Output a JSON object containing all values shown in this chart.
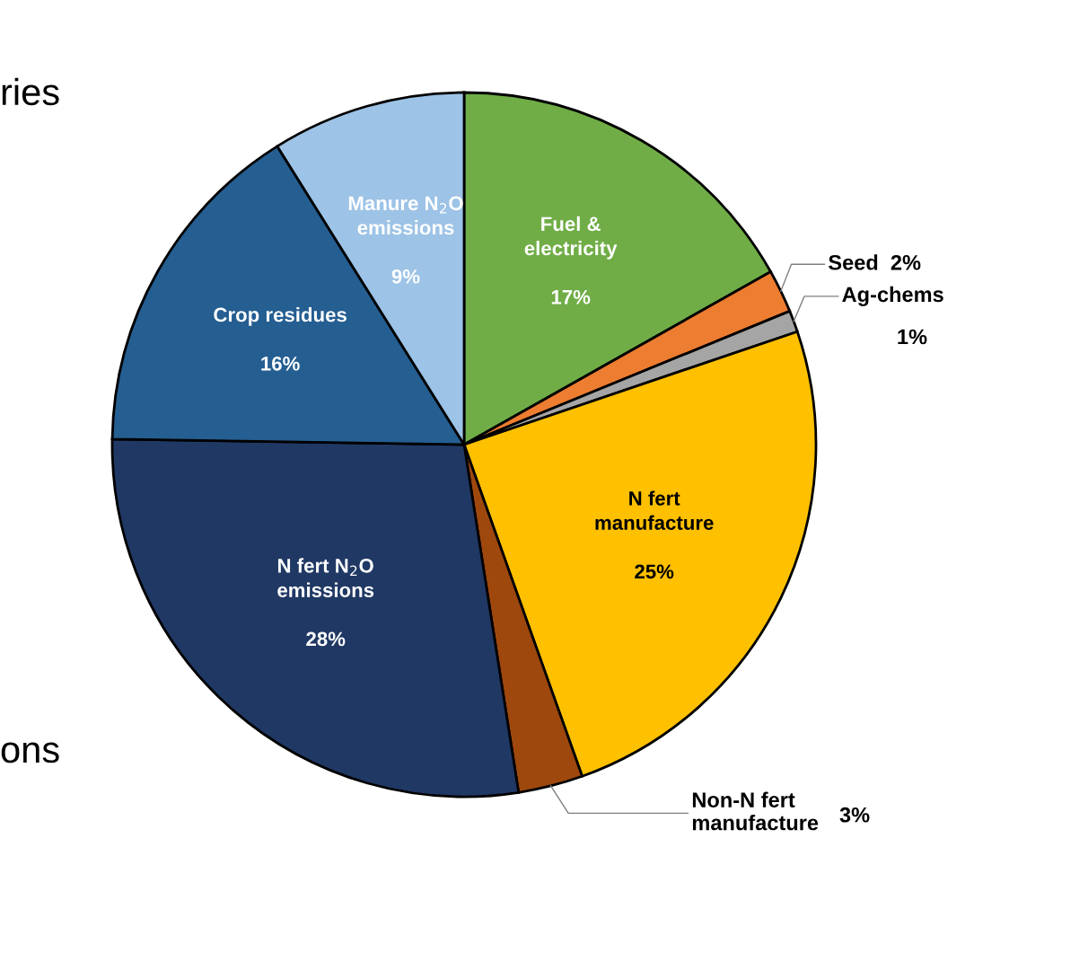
{
  "chart_data": {
    "type": "pie",
    "categories": [
      "Fuel &\nelectricity",
      "Seed",
      "Ag-chems",
      "N fert\nmanufacture",
      "Non-N fert\nmanufacture",
      "N fert N$_{2}$O\nemissions",
      "Crop residues",
      "Manure N$_{2}$O\nemissions"
    ],
    "values": [
      17,
      2,
      1,
      25,
      3,
      28,
      16,
      9
    ],
    "value_labels": [
      "17%",
      "2%",
      "1%",
      "25%",
      "3%",
      "28%",
      "16%",
      "9%"
    ],
    "colors": [
      "#70ad47",
      "#ed7d31",
      "#a5a5a5",
      "#ffc000",
      "#9e480e",
      "#203864",
      "#255e91",
      "#9dc3e6"
    ],
    "annotations": [
      "ries",
      "ons"
    ]
  }
}
